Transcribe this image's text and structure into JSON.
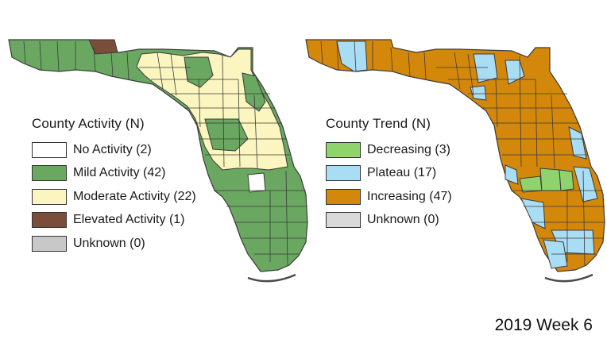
{
  "colors": {
    "no_activity": "#ffffff",
    "mild": "#6aa861",
    "moderate": "#fbf6bf",
    "elevated": "#7b4e3c",
    "unknown": "#c8c8c8",
    "decreasing": "#8ed36b",
    "plateau": "#a9ddf4",
    "increasing": "#d4880b",
    "county_border": "#3a3a3a",
    "water_line": "#4a4a4a"
  },
  "activity_legend": {
    "title": "County Activity (N)",
    "items": [
      {
        "label": "No Activity (2)",
        "color": "#ffffff"
      },
      {
        "label": "Mild Activity (42)",
        "color": "#6aa861"
      },
      {
        "label": "Moderate Activity (22)",
        "color": "#fbf6bf"
      },
      {
        "label": "Elevated Activity (1)",
        "color": "#7b4e3c"
      },
      {
        "label": "Unknown (0)",
        "color": "#c8c8c8"
      }
    ]
  },
  "trend_legend": {
    "title": "County Trend (N)",
    "items": [
      {
        "label": "Decreasing (3)",
        "color": "#8ed36b"
      },
      {
        "label": "Plateau (17)",
        "color": "#a9ddf4"
      },
      {
        "label": "Increasing (47)",
        "color": "#d4880b"
      },
      {
        "label": "Unknown (0)",
        "color": "#d9d9d9"
      }
    ]
  },
  "week_label": "2019 Week 6"
}
